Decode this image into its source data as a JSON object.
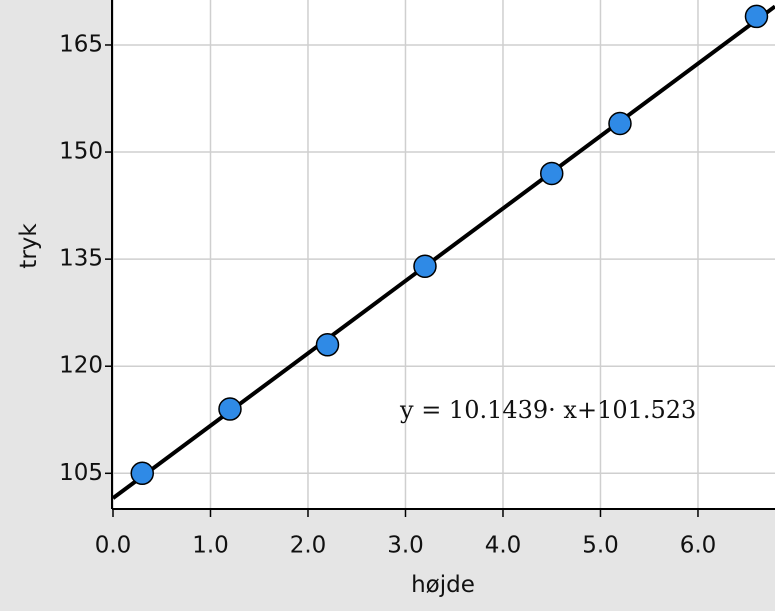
{
  "chart_data": {
    "type": "scatter",
    "x_label": "højde",
    "y_label": "tryk",
    "x": [
      0.3,
      1.2,
      2.2,
      3.2,
      4.5,
      5.2,
      6.6
    ],
    "series": [
      {
        "name": "tryk",
        "color": "#2f8ae6",
        "values": [
          105,
          114,
          123,
          134,
          147,
          154,
          169
        ]
      }
    ],
    "fit": {
      "slope": 10.1439,
      "intercept": 101.523
    },
    "annotation": "y = 10.1439· x+101.523",
    "xlim": [
      0,
      6.79
    ],
    "ylim": [
      100,
      171.3
    ],
    "xticks": [
      {
        "value": 0,
        "label": "0.0"
      },
      {
        "value": 1,
        "label": "1.0"
      },
      {
        "value": 2,
        "label": "2.0"
      },
      {
        "value": 3,
        "label": "3.0"
      },
      {
        "value": 4,
        "label": "4.0"
      },
      {
        "value": 5,
        "label": "5.0"
      },
      {
        "value": 6,
        "label": "6.0"
      }
    ],
    "yticks": [
      105,
      120,
      135,
      150,
      165
    ],
    "grid": true
  }
}
